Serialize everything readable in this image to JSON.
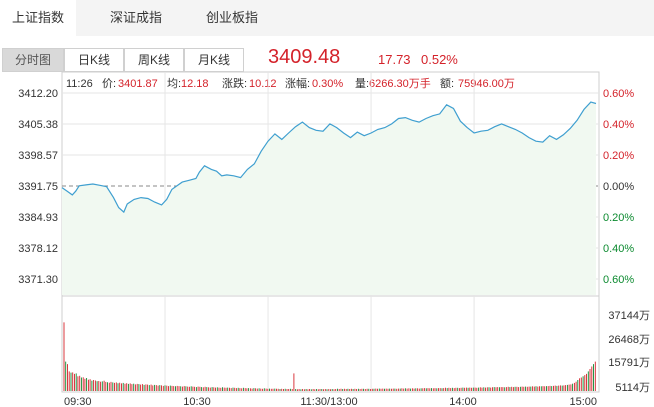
{
  "market_tabs": [
    "上证指数",
    "深证成指",
    "创业板指"
  ],
  "period_tabs": [
    "分时图",
    "日K线",
    "周K线",
    "月K线"
  ],
  "quote": {
    "price": "3409.48",
    "change": "17.73",
    "change_pct": "0.52%"
  },
  "info": {
    "time": "11:26",
    "price_label": "价:",
    "price": "3401.87",
    "avg_label": "均:",
    "avg": "12.18",
    "change_label": "涨跌:",
    "change": "10.12",
    "pct_label": "涨幅:",
    "pct": "0.30%",
    "volume_label": "量:",
    "volume": "6266.30万手",
    "amount_label": "额:",
    "amount": "75946.00万"
  },
  "colors": {
    "up": "#d4222a",
    "down": "#0b8a2f",
    "line": "#3f9fd0",
    "fill": "#f1f9f1",
    "grid": "#e6e6e6"
  },
  "chart_data": {
    "type": "area",
    "prev_close": 3391.75,
    "price_axis": {
      "ticks": [
        "3412.20",
        "3405.38",
        "3398.57",
        "3391.75",
        "3384.93",
        "3378.12",
        "3371.30"
      ],
      "ylim": [
        3371.3,
        3412.2
      ]
    },
    "pct_axis": {
      "ticks": [
        "0.60%",
        "0.40%",
        "0.20%",
        "0.00%",
        "0.20%",
        "0.40%",
        "0.60%"
      ]
    },
    "x_ticks": [
      "09:30",
      "10:30",
      "11:30/13:00",
      "14:00",
      "15:00"
    ],
    "volume_axis": {
      "ticks": [
        "37144万",
        "26468万",
        "15791万",
        "5114万"
      ]
    },
    "price_series": [
      [
        0,
        3391.4
      ],
      [
        3,
        3390.6
      ],
      [
        6,
        3389.8
      ],
      [
        8,
        3390.6
      ],
      [
        10,
        3391.8
      ],
      [
        14,
        3392.0
      ],
      [
        18,
        3392.2
      ],
      [
        22,
        3391.9
      ],
      [
        26,
        3391.6
      ],
      [
        30,
        3389.2
      ],
      [
        33,
        3387.0
      ],
      [
        36,
        3386.0
      ],
      [
        38,
        3387.8
      ],
      [
        42,
        3388.8
      ],
      [
        46,
        3389.2
      ],
      [
        50,
        3389.0
      ],
      [
        54,
        3388.2
      ],
      [
        58,
        3387.6
      ],
      [
        61,
        3388.8
      ],
      [
        64,
        3391.0
      ],
      [
        67,
        3391.8
      ],
      [
        70,
        3392.6
      ],
      [
        74,
        3393.0
      ],
      [
        78,
        3393.4
      ],
      [
        80,
        3394.8
      ],
      [
        83,
        3396.2
      ],
      [
        87,
        3395.4
      ],
      [
        90,
        3395.0
      ],
      [
        93,
        3394.0
      ],
      [
        96,
        3394.2
      ],
      [
        100,
        3394.0
      ],
      [
        104,
        3393.6
      ],
      [
        108,
        3395.4
      ],
      [
        112,
        3396.6
      ],
      [
        116,
        3399.4
      ],
      [
        120,
        3401.6
      ],
      [
        124,
        3403.2
      ],
      [
        128,
        3402.0
      ],
      [
        132,
        3403.4
      ],
      [
        136,
        3404.8
      ],
      [
        140,
        3405.8
      ],
      [
        144,
        3404.6
      ],
      [
        148,
        3404.0
      ],
      [
        152,
        3403.8
      ],
      [
        156,
        3405.4
      ],
      [
        160,
        3404.6
      ],
      [
        164,
        3403.4
      ],
      [
        168,
        3402.4
      ],
      [
        172,
        3403.6
      ],
      [
        176,
        3402.8
      ],
      [
        180,
        3403.4
      ],
      [
        184,
        3404.2
      ],
      [
        188,
        3404.6
      ],
      [
        192,
        3405.4
      ],
      [
        196,
        3406.6
      ],
      [
        200,
        3406.8
      ],
      [
        204,
        3406.2
      ],
      [
        208,
        3405.8
      ],
      [
        212,
        3406.6
      ],
      [
        216,
        3407.2
      ],
      [
        220,
        3407.6
      ],
      [
        224,
        3409.6
      ],
      [
        228,
        3408.8
      ],
      [
        232,
        3406.0
      ],
      [
        236,
        3404.6
      ],
      [
        240,
        3403.4
      ],
      [
        244,
        3403.8
      ],
      [
        248,
        3404.0
      ],
      [
        252,
        3404.8
      ],
      [
        256,
        3405.4
      ],
      [
        260,
        3404.8
      ],
      [
        264,
        3404.2
      ],
      [
        268,
        3403.4
      ],
      [
        272,
        3402.4
      ],
      [
        276,
        3401.6
      ],
      [
        280,
        3401.4
      ],
      [
        284,
        3402.8
      ],
      [
        288,
        3402.0
      ],
      [
        292,
        3403.0
      ],
      [
        296,
        3404.4
      ],
      [
        300,
        3406.2
      ],
      [
        304,
        3408.6
      ],
      [
        308,
        3410.2
      ],
      [
        311,
        3409.9
      ]
    ],
    "volume_series": [
      28000,
      12000,
      11000,
      8000,
      7500,
      7600,
      7000,
      7200,
      6000,
      6200,
      5500,
      5600,
      5000,
      5300,
      4600,
      4800,
      4200,
      4500,
      4300,
      4000,
      4100,
      3800,
      3900,
      4200,
      3700,
      3600,
      3400,
      3700,
      3500,
      3300,
      3500,
      3200,
      3400,
      3100,
      3300,
      3000,
      3200,
      2900,
      3100,
      2800,
      3000,
      2700,
      2900,
      2800,
      2600,
      2800,
      2500,
      2700,
      2600,
      2400,
      2600,
      2300,
      2500,
      2400,
      2200,
      2400,
      2300,
      2100,
      2300,
      2200,
      2000,
      2200,
      2100,
      2000,
      1900,
      2100,
      2000,
      1900,
      1800,
      2000,
      1900,
      1800,
      1700,
      1900,
      1800,
      1700,
      1600,
      1800,
      1700,
      1600,
      1500,
      1700,
      1600,
      1500,
      1400,
      1600,
      1500,
      1400,
      1500,
      1400,
      1300,
      1500,
      1400,
      1300,
      1400,
      1300,
      1200,
      1400,
      1300,
      1200,
      1300,
      1200,
      1100,
      1300,
      1200,
      1100,
      1200,
      1100,
      1000,
      1200,
      1100,
      1000,
      1100,
      1000,
      900,
      1100,
      1000,
      900,
      1000,
      900,
      900,
      1000,
      900,
      900,
      800,
      900,
      800,
      900,
      800,
      800,
      900,
      800,
      7200,
      800,
      700,
      800,
      700,
      800,
      700,
      800,
      700,
      800,
      700,
      800,
      700,
      800,
      700,
      800,
      800,
      700,
      800,
      700,
      800,
      700,
      800,
      700,
      800,
      900,
      800,
      900,
      800,
      900,
      800,
      900,
      800,
      900,
      800,
      900,
      800,
      900,
      800,
      900,
      900,
      800,
      900,
      900,
      800,
      900,
      900,
      1000,
      900,
      1000,
      900,
      1000,
      900,
      1000,
      900,
      1000,
      900,
      1000,
      1000,
      900,
      1000,
      1000,
      1100,
      1000,
      1100,
      1000,
      1100,
      1000,
      1100,
      1000,
      1100,
      1100,
      1000,
      1100,
      1100,
      1200,
      1100,
      1200,
      1100,
      1200,
      1100,
      1200,
      1100,
      1200,
      1200,
      1100,
      1200,
      1300,
      1200,
      1300,
      1200,
      1300,
      1200,
      1300,
      1300,
      1200,
      1300,
      1400,
      1300,
      1400,
      1300,
      1400,
      1300,
      1400,
      1400,
      1300,
      1400,
      1500,
      1400,
      1500,
      1400,
      1500,
      1500,
      1400,
      1500,
      1600,
      1500,
      1600,
      1500,
      1600,
      1600,
      1500,
      1600,
      1700,
      1600,
      1700,
      1600,
      1700,
      1700,
      1600,
      1700,
      1800,
      1700,
      1800,
      1700,
      1800,
      1800,
      1900,
      1800,
      1900,
      1800,
      1900,
      1900,
      2000,
      1900,
      2000,
      2000,
      2100,
      2000,
      2100,
      2200,
      2100,
      2200,
      2300,
      2200,
      2300,
      2400,
      2500,
      2600,
      2700,
      3000,
      3300,
      3800,
      4500,
      5200,
      5500,
      6000,
      6500,
      7000,
      8000,
      9000,
      10000,
      11000,
      12000
    ]
  }
}
